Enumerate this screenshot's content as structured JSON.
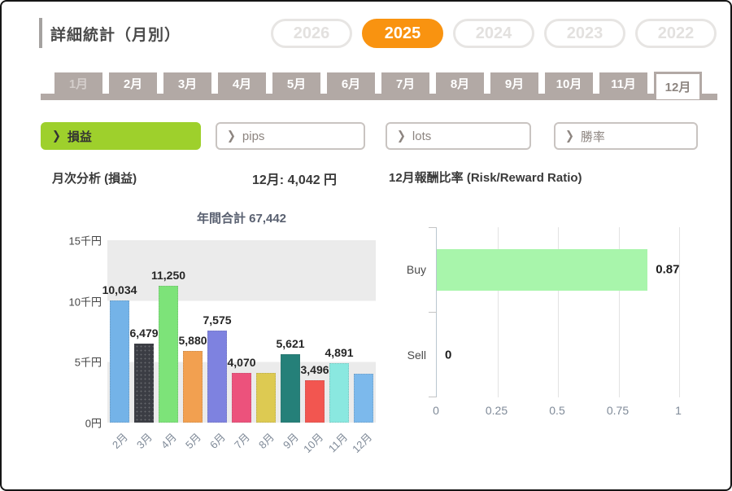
{
  "header": {
    "title": "詳細統計（月別）"
  },
  "years": [
    {
      "label": "2026",
      "active": false
    },
    {
      "label": "2025",
      "active": true
    },
    {
      "label": "2024",
      "active": false
    },
    {
      "label": "2023",
      "active": false
    },
    {
      "label": "2022",
      "active": false
    }
  ],
  "months": [
    {
      "label": "1月",
      "state": "disabled"
    },
    {
      "label": "2月",
      "state": "normal"
    },
    {
      "label": "3月",
      "state": "normal"
    },
    {
      "label": "4月",
      "state": "normal"
    },
    {
      "label": "5月",
      "state": "normal"
    },
    {
      "label": "6月",
      "state": "normal"
    },
    {
      "label": "7月",
      "state": "normal"
    },
    {
      "label": "8月",
      "state": "normal"
    },
    {
      "label": "9月",
      "state": "normal"
    },
    {
      "label": "10月",
      "state": "normal"
    },
    {
      "label": "11月",
      "state": "normal"
    },
    {
      "label": "12月",
      "state": "selected"
    }
  ],
  "categories": [
    {
      "name": "tab-profit",
      "label": "損益",
      "active": true,
      "icon": "chevron-right-icon"
    },
    {
      "name": "tab-pips",
      "label": "pips",
      "active": false,
      "icon": "chevron-right-icon"
    },
    {
      "name": "tab-lots",
      "label": "lots",
      "active": false,
      "icon": "chevron-right-icon"
    },
    {
      "name": "tab-winrate",
      "label": "勝率",
      "active": false,
      "icon": "chevron-right-icon"
    }
  ],
  "sections": {
    "left_title": "月次分析 (損益)",
    "month_value": "12月:  4,042 円",
    "right_title": "12月報酬比率 (Risk/Reward Ratio)"
  },
  "colors": {
    "accent_orange": "#f99310",
    "accent_green": "#9ed02c",
    "tab_gray": "#b2a9a5",
    "band_gray": "#ebebeb",
    "buy_bar_green": "#a8f5ab"
  },
  "chart_data": [
    {
      "type": "bar",
      "title": "年間合計 67,442",
      "categories": [
        "2月",
        "3月",
        "4月",
        "5月",
        "6月",
        "7月",
        "8月",
        "9月",
        "10月",
        "11月",
        "12月"
      ],
      "values": [
        10034,
        6479,
        11250,
        5880,
        7575,
        4070,
        4104,
        5621,
        3496,
        4891,
        4042
      ],
      "data_labels": [
        "10,034",
        "6,479",
        "11,250",
        "5,880",
        "7,575",
        "4,070",
        "",
        "5,621",
        "3,496",
        "4,891",
        ""
      ],
      "bar_colors": [
        "#74b3e8",
        "#3b3d44",
        "#7de379",
        "#f2a050",
        "#7e82e0",
        "#ec527c",
        "#ddca52",
        "#258079",
        "#f25650",
        "#8ae8e0",
        "#7cb9ec"
      ],
      "dotted_pattern_index": 1,
      "ylabel_ticks": [
        "15千円",
        "10千円",
        "5千円",
        "0円"
      ],
      "ylim": [
        0,
        15000
      ],
      "grid": "alternating-bands",
      "legend": "none"
    },
    {
      "type": "bar",
      "orientation": "horizontal",
      "title": "12月報酬比率 (Risk/Reward Ratio)",
      "categories": [
        "Buy",
        "Sell"
      ],
      "values": [
        0.87,
        0
      ],
      "data_labels": [
        "0.87",
        "0"
      ],
      "bar_color": "#a8f5ab",
      "xtick_labels": [
        "0",
        "0.25",
        "0.5",
        "0.75",
        "1"
      ],
      "xtick_values": [
        0,
        0.25,
        0.5,
        0.75,
        1
      ],
      "xlim": [
        0,
        1
      ],
      "grid": "vertical-lines",
      "legend": "none"
    }
  ]
}
